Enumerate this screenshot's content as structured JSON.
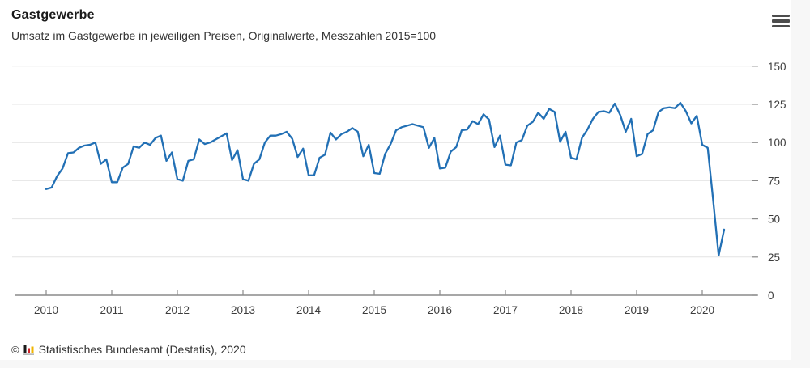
{
  "header": {
    "title": "Gastgewerbe",
    "subtitle": "Umsatz im Gastgewerbe in jeweiligen Preisen, Originalwerte, Messzahlen 2015=100"
  },
  "menu": {
    "icon": "hamburger-menu-icon",
    "bar_color": "#4d4d4d"
  },
  "chart_data": {
    "type": "line",
    "title": "Gastgewerbe",
    "subtitle": "Umsatz im Gastgewerbe in jeweiligen Preisen, Originalwerte, Messzahlen 2015=100",
    "x_unit": "month",
    "x_start": {
      "year": 2010,
      "month": 1
    },
    "x_tick_labels": [
      "2010",
      "2011",
      "2012",
      "2013",
      "2014",
      "2015",
      "2016",
      "2017",
      "2018",
      "2019",
      "2020"
    ],
    "y_ticks": [
      0,
      25,
      50,
      75,
      100,
      125,
      150
    ],
    "ylim": [
      0,
      150
    ],
    "grid": true,
    "legend": false,
    "y_axis_side": "right",
    "line_color": "#2270b5",
    "grid_color": "#e4e4e4",
    "axis_color": "#8a8a8a",
    "tick_label_color": "#3c3c3c",
    "series": [
      {
        "name": "Umsatz im Gastgewerbe",
        "values": [
          69.5,
          70.5,
          78,
          83,
          93,
          93.5,
          96.5,
          98,
          98.5,
          100,
          86,
          89,
          74,
          74,
          83.5,
          86,
          97.5,
          96.5,
          100,
          98.5,
          103,
          104.5,
          88,
          93.5,
          76,
          75,
          88,
          89,
          102,
          99,
          100,
          102,
          104,
          106,
          88.5,
          95,
          76,
          75,
          86,
          89,
          100,
          104.5,
          104.5,
          105.5,
          107,
          102.5,
          90.5,
          96,
          78.5,
          78.5,
          90,
          92,
          106.5,
          102,
          105.5,
          107,
          109.5,
          107,
          91,
          98.5,
          80,
          79.5,
          92.5,
          99,
          108,
          110,
          111,
          112,
          111,
          110,
          96.5,
          103,
          83,
          83.5,
          94,
          97,
          108,
          108.5,
          114,
          112,
          118.5,
          115,
          97,
          104.5,
          85.5,
          85,
          100,
          101.5,
          111,
          113.5,
          119.5,
          115.5,
          122,
          120,
          100.5,
          107,
          90,
          89,
          103,
          108.5,
          115.5,
          120,
          120.5,
          119.5,
          125.5,
          118,
          107,
          115.5,
          91,
          92.5,
          105.5,
          108,
          120,
          122.5,
          123,
          122.5,
          126,
          120.5,
          112.5,
          117.5,
          98.5,
          96.5,
          62,
          26,
          43
        ]
      }
    ]
  },
  "footer": {
    "copyright_symbol": "©",
    "source": "Statistisches Bundesamt (Destatis), 2020",
    "logo_icon": "destatis-bar-chart-logo",
    "logo_colors": {
      "bar1": "#1a1a1a",
      "bar2": "#d2232a",
      "bar3": "#f0b500",
      "baseline": "#9a9a9a"
    }
  }
}
